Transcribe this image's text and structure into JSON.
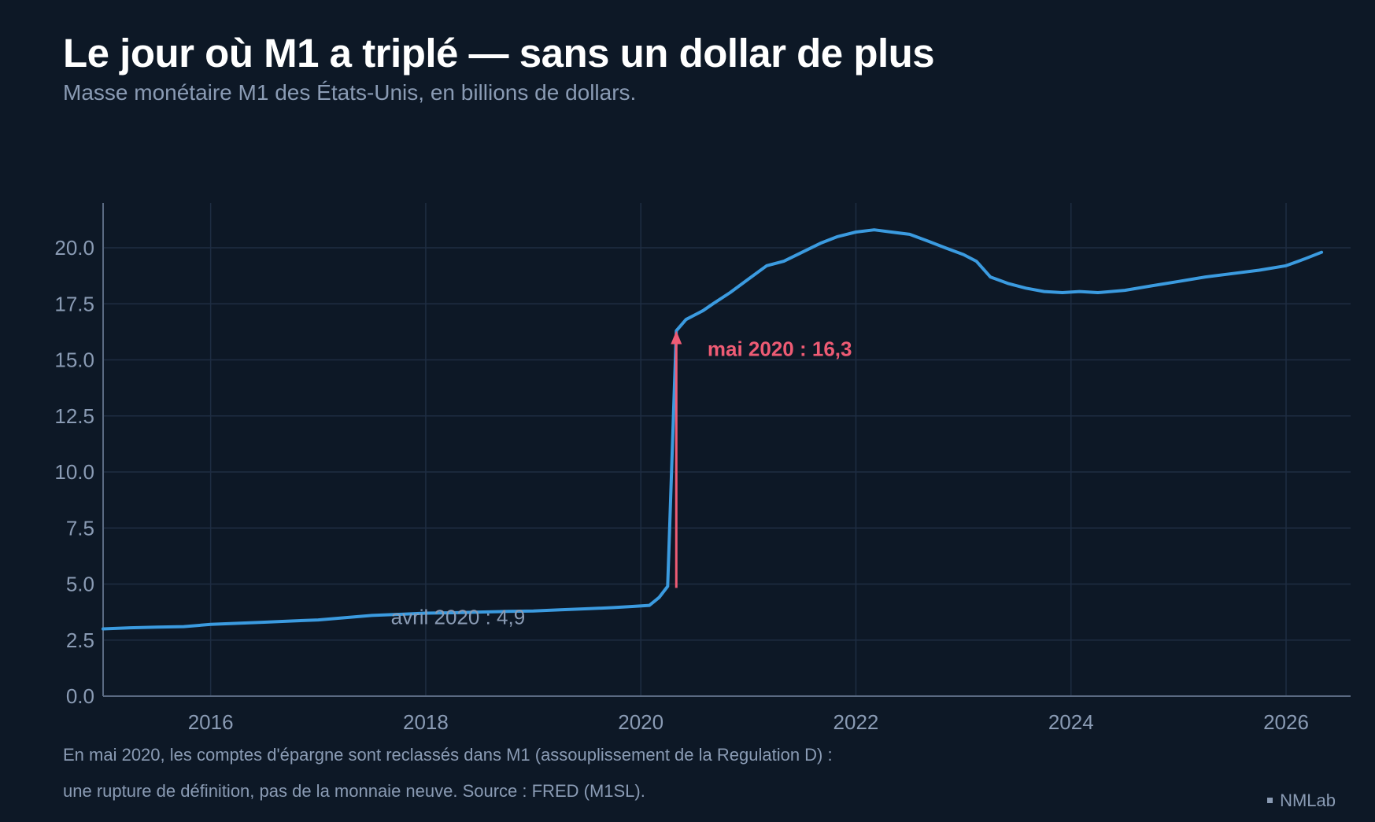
{
  "title": "Le jour où M1 a triplé — sans un dollar de plus",
  "subtitle": "Masse monétaire M1 des États-Unis, en billions de dollars.",
  "notes": [
    "En mai 2020, les comptes d'épargne sont reclassés dans M1 (assouplissement de la Regulation D) :",
    "une rupture de définition, pas de la monnaie neuve. Source : FRED (M1SL)."
  ],
  "brand": "NMLab",
  "colors": {
    "background": "#0d1826",
    "line": "#3b9be0",
    "highlight": "#ee5b74",
    "grid": "#1e2d42",
    "muted": "#8a9bb4"
  },
  "chart_data": {
    "type": "line",
    "title": "Le jour où M1 a triplé — sans un dollar de plus",
    "subtitle": "Masse monétaire M1 des États-Unis, en billions de dollars.",
    "xlabel": "",
    "ylabel": "",
    "xlim": [
      2015.0,
      2026.6
    ],
    "ylim": [
      0,
      22
    ],
    "x_ticks": [
      2016,
      2018,
      2020,
      2022,
      2024,
      2026
    ],
    "y_ticks": [
      0.0,
      2.5,
      5.0,
      7.5,
      10.0,
      12.5,
      15.0,
      17.5,
      20.0
    ],
    "grid": true,
    "legend": "none",
    "series": [
      {
        "x": [
          2015.0,
          2015.25,
          2015.5,
          2015.75,
          2016.0,
          2016.25,
          2016.5,
          2016.75,
          2017.0,
          2017.25,
          2017.5,
          2017.75,
          2018.0,
          2018.25,
          2018.5,
          2018.75,
          2019.0,
          2019.25,
          2019.5,
          2019.75,
          2019.92,
          2020.08,
          2020.17,
          2020.25,
          2020.33,
          2020.42,
          2020.5,
          2020.58,
          2020.67,
          2020.83,
          2021.0,
          2021.17,
          2021.33,
          2021.5,
          2021.67,
          2021.83,
          2022.0,
          2022.17,
          2022.33,
          2022.5,
          2022.67,
          2022.83,
          2023.0,
          2023.12,
          2023.25,
          2023.42,
          2023.58,
          2023.75,
          2023.92,
          2024.08,
          2024.25,
          2024.5,
          2024.75,
          2025.0,
          2025.25,
          2025.5,
          2025.75,
          2026.0,
          2026.17,
          2026.33
        ],
        "values": [
          3.0,
          3.05,
          3.08,
          3.1,
          3.2,
          3.25,
          3.3,
          3.35,
          3.4,
          3.5,
          3.6,
          3.65,
          3.7,
          3.72,
          3.75,
          3.78,
          3.8,
          3.85,
          3.9,
          3.95,
          4.0,
          4.05,
          4.4,
          4.9,
          16.3,
          16.8,
          17.0,
          17.2,
          17.5,
          18.0,
          18.6,
          19.2,
          19.4,
          19.8,
          20.2,
          20.5,
          20.7,
          20.8,
          20.7,
          20.6,
          20.3,
          20.0,
          19.7,
          19.4,
          18.7,
          18.4,
          18.2,
          18.05,
          18.0,
          18.05,
          18.0,
          18.1,
          18.3,
          18.5,
          18.7,
          18.85,
          19.0,
          19.2,
          19.5,
          19.8
        ]
      }
    ],
    "annotations": [
      {
        "text": "avril 2020 : 4,9",
        "x": 2020.25,
        "y": 4.9
      },
      {
        "text": "mai 2020 : 16,3",
        "x": 2020.33,
        "y": 16.3
      }
    ]
  }
}
